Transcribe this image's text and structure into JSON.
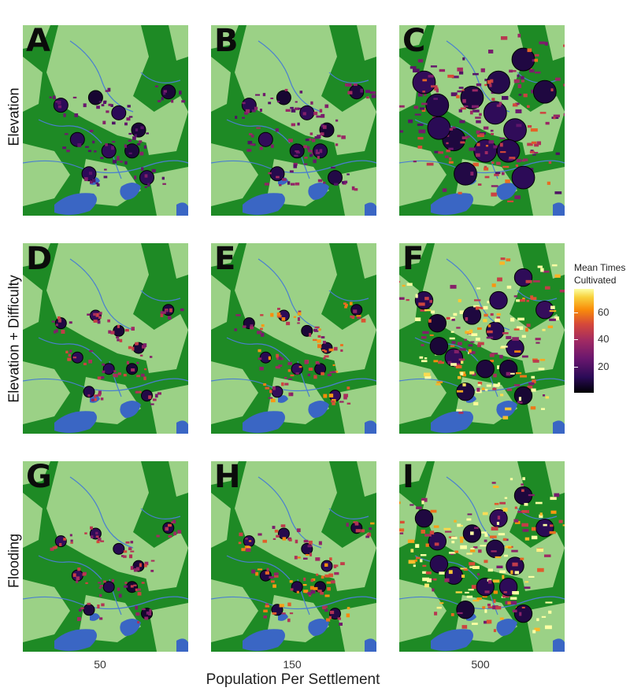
{
  "chart_data": {
    "type": "heatmap",
    "description_colormap": "inferno",
    "rows": [
      "Elevation",
      "Elevation + Difficulty",
      "Flooding"
    ],
    "columns": [
      "50",
      "150",
      "500"
    ],
    "xlabel": "Population Per Settlement",
    "panels": [
      {
        "letter": "A",
        "row": "Elevation",
        "population": 50
      },
      {
        "letter": "B",
        "row": "Elevation",
        "population": 150
      },
      {
        "letter": "C",
        "row": "Elevation",
        "population": 500
      },
      {
        "letter": "D",
        "row": "Elevation + Difficulty",
        "population": 50
      },
      {
        "letter": "E",
        "row": "Elevation + Difficulty",
        "population": 150
      },
      {
        "letter": "F",
        "row": "Elevation + Difficulty",
        "population": 500
      },
      {
        "letter": "G",
        "row": "Flooding",
        "population": 50
      },
      {
        "letter": "H",
        "row": "Flooding",
        "population": 150
      },
      {
        "letter": "I",
        "row": "Flooding",
        "population": 500
      }
    ],
    "legend": {
      "title_line1": "Mean Times",
      "title_line2": "Cultivated",
      "ticks": [
        20,
        40,
        60
      ],
      "range": [
        0,
        75
      ]
    }
  },
  "colors": {
    "forest": "#1e8a25",
    "open": "#9bd186",
    "water": "#3a66c4",
    "river": "#4a7fd0"
  }
}
